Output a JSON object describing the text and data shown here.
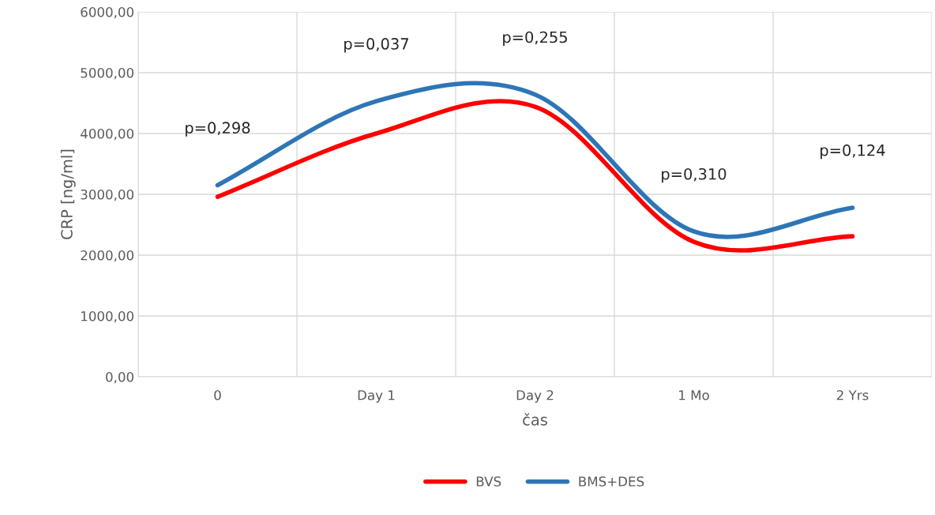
{
  "chart_data": {
    "type": "line",
    "xlabel": "čas",
    "ylabel": "CRP [ng/ml]",
    "categories": [
      "0",
      "Day 1",
      "Day 2",
      "1 Mo",
      "2 Yrs"
    ],
    "series": [
      {
        "name": "BVS",
        "color": "#ff0000",
        "values": [
          2960,
          4000,
          4440,
          2220,
          2310
        ]
      },
      {
        "name": "BMS+DES",
        "color": "#2e75b6",
        "values": [
          3150,
          4530,
          4640,
          2390,
          2780
        ]
      }
    ],
    "ylim": [
      0,
      6000
    ],
    "yticks": [
      {
        "value": 0,
        "label": "0,00"
      },
      {
        "value": 1000,
        "label": "1000,00"
      },
      {
        "value": 2000,
        "label": "2000,00"
      },
      {
        "value": 3000,
        "label": "3000,00"
      },
      {
        "value": 4000,
        "label": "4000,00"
      },
      {
        "value": 5000,
        "label": "5000,00"
      },
      {
        "value": 6000,
        "label": "6000,00"
      }
    ],
    "annotations": [
      "p=0,298",
      "p=0,037",
      "p=0,255",
      "p=0,310",
      "p=0,124"
    ],
    "grid": true,
    "legend": "bottom",
    "marker": "none",
    "line_style": "solid"
  }
}
